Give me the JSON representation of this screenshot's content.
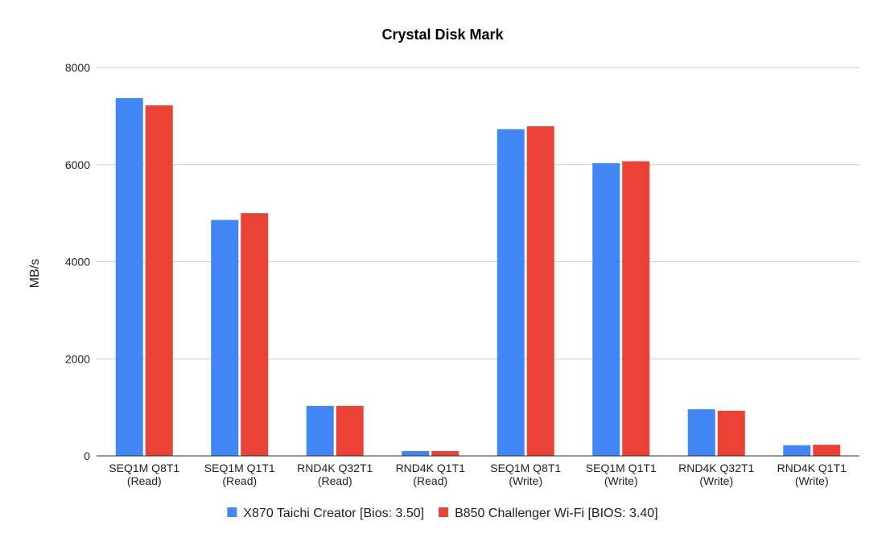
{
  "chart_data": {
    "type": "bar",
    "title": "Crystal Disk Mark",
    "xlabel": "",
    "ylabel": "MB/s",
    "ylim": [
      0,
      8000
    ],
    "yticks": [
      0,
      2000,
      4000,
      6000,
      8000
    ],
    "grid": true,
    "legend_position": "bottom",
    "categories": [
      [
        "SEQ1M Q8T1",
        "(Read)"
      ],
      [
        "SEQ1M Q1T1",
        "(Read)"
      ],
      [
        "RND4K Q32T1",
        "(Read)"
      ],
      [
        "RND4K Q1T1",
        "(Read)"
      ],
      [
        "SEQ1M Q8T1",
        "(Write)"
      ],
      [
        "SEQ1M Q1T1",
        "(Write)"
      ],
      [
        "RND4K Q32T1",
        "(Write)"
      ],
      [
        "RND4K Q1T1",
        "(Write)"
      ]
    ],
    "series": [
      {
        "name": "X870 Taichi Creator [Bios: 3.50]",
        "color": "#4285f4",
        "values": [
          7370,
          4860,
          1030,
          100,
          6730,
          6030,
          960,
          220
        ]
      },
      {
        "name": "B850 Challenger Wi-Fi [BIOS: 3.40]",
        "color": "#ea4335",
        "values": [
          7220,
          5000,
          1030,
          100,
          6790,
          6070,
          930,
          230
        ]
      }
    ]
  }
}
